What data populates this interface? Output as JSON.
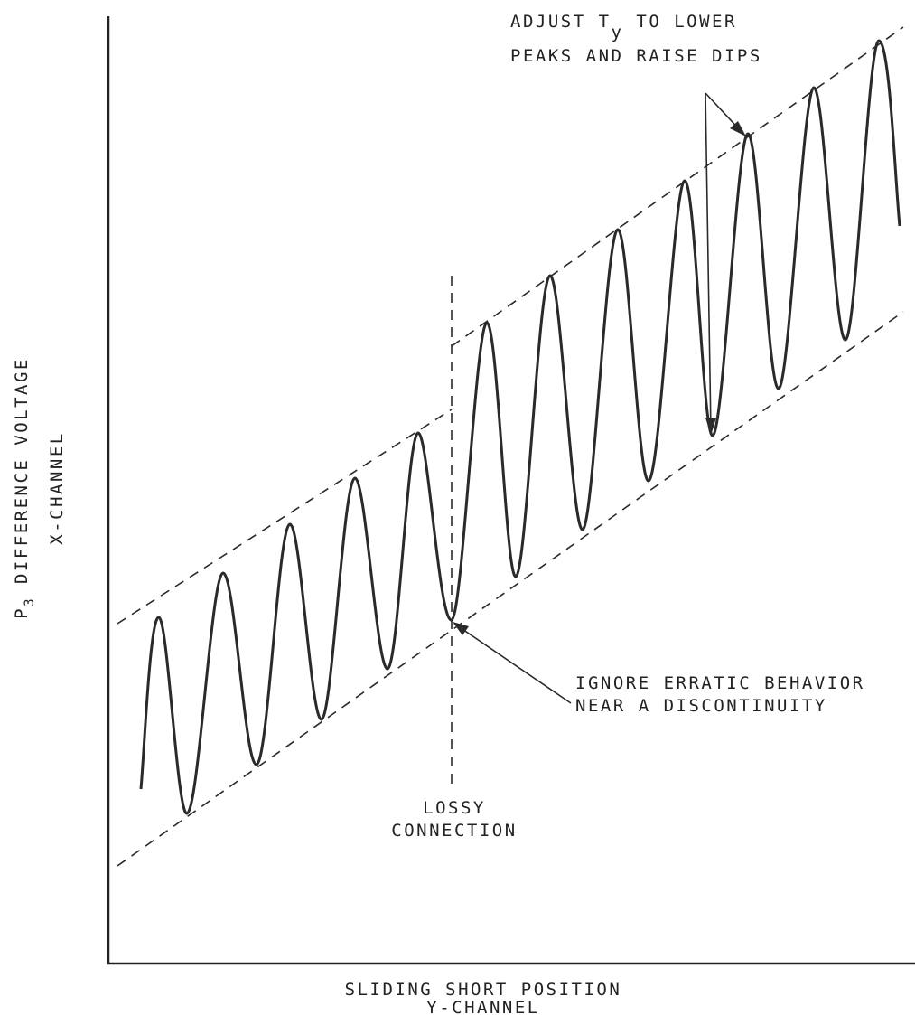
{
  "diagram": {
    "y_axis": {
      "label_prefix": "P",
      "label_subscript": "3",
      "label_main": " DIFFERENCE VOLTAGE",
      "label_line2": "X-CHANNEL"
    },
    "x_axis": {
      "label_line1": "SLIDING SHORT POSITION",
      "label_line2": "Y-CHANNEL"
    },
    "annotations": {
      "adjust": {
        "line1_a": "ADJUST T",
        "line1_sub": "y",
        "line1_b": " TO LOWER",
        "line2": "PEAKS AND RAISE DIPS"
      },
      "ignore": {
        "line1": "IGNORE ERRATIC BEHAVIOR",
        "line2": "NEAR A DISCONTINUITY"
      },
      "lossy": {
        "line1": "LOSSY",
        "line2": "CONNECTION"
      }
    }
  }
}
